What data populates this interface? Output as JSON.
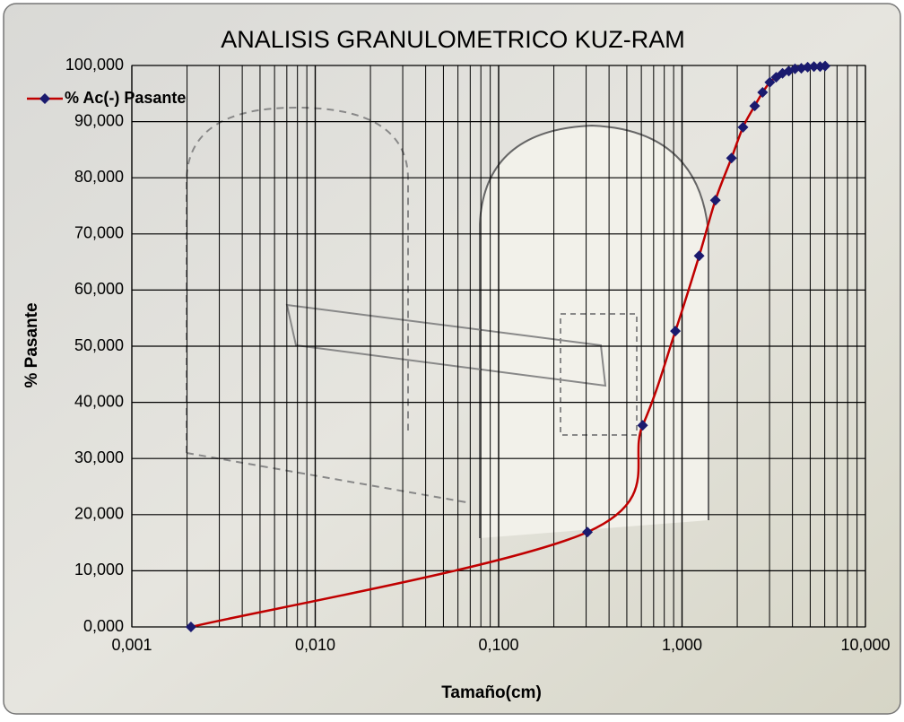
{
  "chart_data": {
    "type": "line",
    "title": "ANALISIS GRANULOMETRICO KUZ-RAM",
    "x_label": "Tamaño(cm)",
    "y_label": "% Pasante",
    "x_scale": "log",
    "grid": true,
    "legend": "top-left",
    "x": [
      0.0021,
      0.305,
      0.61,
      0.92,
      1.24,
      1.52,
      1.86,
      2.15,
      2.49,
      2.75,
      3.01,
      3.26,
      3.53,
      3.82,
      4.13,
      4.47,
      4.84,
      5.24,
      5.66,
      6.03
    ],
    "series": [
      {
        "name": "% Ac(-) Pasante",
        "color": "#c00000",
        "marker_color": "#1a1a6e",
        "values": [
          0,
          16.9,
          35.9,
          52.7,
          66.1,
          76.0,
          83.5,
          89.0,
          92.8,
          95.2,
          97.0,
          97.9,
          98.6,
          99.0,
          99.4,
          99.5,
          99.7,
          99.8,
          99.8,
          99.9
        ]
      }
    ],
    "xlim": [
      0.001,
      10
    ],
    "xticks": [
      {
        "value": 0.001,
        "label": "0,001"
      },
      {
        "value": 0.01,
        "label": "0,010"
      },
      {
        "value": 0.1,
        "label": "0,100"
      },
      {
        "value": 1,
        "label": "1,000"
      },
      {
        "value": 10,
        "label": "10,000"
      }
    ],
    "xminorticks": [
      0.002,
      0.003,
      0.004,
      0.005,
      0.006,
      0.007,
      0.008,
      0.009,
      0.02,
      0.03,
      0.04,
      0.05,
      0.06,
      0.07,
      0.08,
      0.09,
      0.2,
      0.3,
      0.4,
      0.5,
      0.6,
      0.7,
      0.8,
      0.9,
      2,
      3,
      4,
      5,
      6,
      7,
      8,
      9
    ],
    "ylim": [
      0,
      100
    ],
    "yticks": [
      {
        "value": 0,
        "label": "0,000"
      },
      {
        "value": 10,
        "label": "10,000"
      },
      {
        "value": 20,
        "label": "20,000"
      },
      {
        "value": 30,
        "label": "30,000"
      },
      {
        "value": 40,
        "label": "40,000"
      },
      {
        "value": 50,
        "label": "50,000"
      },
      {
        "value": 60,
        "label": "60,000"
      },
      {
        "value": 70,
        "label": "70,000"
      },
      {
        "value": 80,
        "label": "80,000"
      },
      {
        "value": 90,
        "label": "90,000"
      },
      {
        "value": 100,
        "label": "100,000"
      }
    ]
  }
}
